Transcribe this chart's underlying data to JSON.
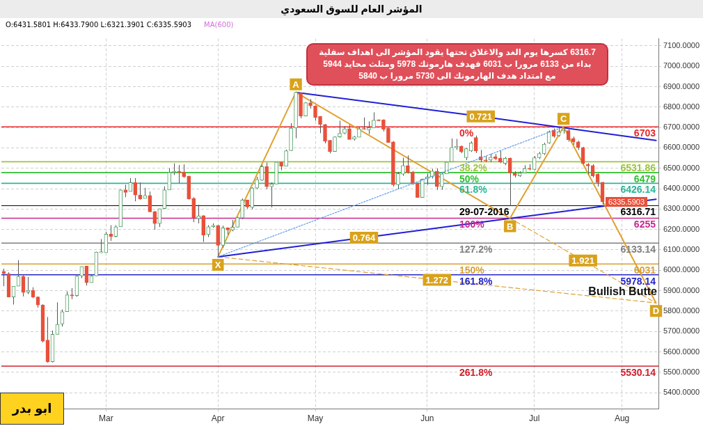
{
  "chart_data": {
    "type": "candlestick",
    "title": "المؤشر العام للسوق السعودي",
    "subtitle": "O:6431.5801 H:6433.7900 L:6321.3901 C:6335.5903",
    "categories": [
      null,
      null,
      null,
      null,
      null,
      null,
      null,
      null,
      null,
      null,
      null,
      null,
      null,
      null,
      null,
      null,
      null,
      null,
      null,
      null,
      null,
      "Mar",
      null,
      null,
      null,
      null,
      null,
      null,
      null,
      null,
      null,
      null,
      null,
      null,
      null,
      null,
      null,
      null,
      null,
      null,
      null,
      null,
      null,
      null,
      "Apr",
      null,
      null,
      null,
      null,
      null,
      null,
      null,
      null,
      null,
      null,
      null,
      null,
      null,
      null,
      null,
      null,
      null,
      null,
      null,
      "May",
      null,
      null,
      null,
      null,
      null,
      null,
      null,
      null,
      null,
      null,
      null,
      null,
      null,
      null,
      null,
      null,
      null,
      null,
      null,
      null,
      null,
      null,
      "Jun",
      null,
      null,
      null,
      null,
      null,
      null,
      null,
      null,
      null,
      null,
      null,
      null,
      null,
      null,
      null,
      null,
      null,
      null,
      null,
      null,
      null,
      "Jul",
      null,
      null,
      null,
      null,
      null,
      null,
      null,
      null,
      null,
      null,
      null,
      null,
      null,
      null,
      null,
      null,
      null,
      "Aug",
      null,
      null,
      null,
      null,
      null,
      null,
      null
    ],
    "ohlc": [
      [
        5995,
        6008,
        5922,
        5983
      ],
      [
        5983,
        5990,
        5869,
        5869
      ],
      [
        5869,
        5922,
        5832,
        5922
      ],
      [
        5922,
        6050,
        5922,
        5970
      ],
      [
        5970,
        5975,
        5872,
        5891
      ],
      [
        5893,
        5967,
        5883,
        5902
      ],
      [
        5902,
        5917,
        5863,
        5869
      ],
      [
        5869,
        5872,
        5817,
        5830
      ],
      [
        5830,
        5833,
        5647,
        5652
      ],
      [
        5658,
        5771,
        5547,
        5552
      ],
      [
        5552,
        5705,
        5548,
        5686
      ],
      [
        5686,
        5843,
        5686,
        5735
      ],
      [
        5737,
        5808,
        5724,
        5797
      ],
      [
        5797,
        5897,
        5797,
        5880
      ],
      [
        5880,
        5913,
        5858,
        5874
      ],
      [
        5876,
        5980,
        5870,
        5972
      ],
      [
        5972,
        6019,
        5961,
        6019
      ],
      [
        6020,
        6022,
        5925,
        5939
      ],
      [
        5939,
        5980,
        5939,
        5972
      ],
      [
        5972,
        6091,
        5972,
        6089
      ],
      [
        6086,
        6153,
        6085,
        6091
      ],
      [
        6086,
        6188,
        6086,
        6177
      ],
      [
        6177,
        6221,
        6144,
        6166
      ],
      [
        6166,
        6221,
        6162,
        6213
      ],
      [
        6213,
        6396,
        6213,
        6394
      ],
      [
        6394,
        6419,
        6358,
        6382
      ],
      [
        6386,
        6452,
        6386,
        6430
      ],
      [
        6430,
        6452,
        6338,
        6369
      ],
      [
        6369,
        6430,
        6346,
        6349
      ],
      [
        6352,
        6404,
        6352,
        6367
      ],
      [
        6367,
        6386,
        6286,
        6286
      ],
      [
        6288,
        6290,
        6199,
        6229
      ],
      [
        6229,
        6302,
        6212,
        6302
      ],
      [
        6302,
        6411,
        6302,
        6394
      ],
      [
        6394,
        6500,
        6394,
        6480
      ],
      [
        6480,
        6524,
        6467,
        6484
      ],
      [
        6484,
        6516,
        6427,
        6480
      ],
      [
        6482,
        6519,
        6453,
        6458
      ],
      [
        6461,
        6463,
        6347,
        6349
      ],
      [
        6352,
        6358,
        6236,
        6256
      ],
      [
        6253,
        6321,
        6230,
        6267
      ],
      [
        6268,
        6270,
        6139,
        6172
      ],
      [
        6175,
        6221,
        6163,
        6213
      ],
      [
        6213,
        6230,
        6208,
        6220
      ],
      [
        6220,
        6222,
        6066,
        6122
      ],
      [
        6122,
        6219,
        6110,
        6208
      ],
      [
        6208,
        6210,
        6175,
        6197
      ],
      [
        6197,
        6247,
        6191,
        6211
      ],
      [
        6211,
        6262,
        6211,
        6258
      ],
      [
        6256,
        6352,
        6250,
        6344
      ],
      [
        6344,
        6346,
        6302,
        6310
      ],
      [
        6308,
        6407,
        6299,
        6403
      ],
      [
        6403,
        6458,
        6398,
        6445
      ],
      [
        6441,
        6517,
        6438,
        6508
      ],
      [
        6508,
        6528,
        6397,
        6410
      ],
      [
        6410,
        6430,
        6308,
        6423
      ],
      [
        6423,
        6530,
        6423,
        6530
      ],
      [
        6530,
        6532,
        6490,
        6510
      ],
      [
        6510,
        6591,
        6510,
        6586
      ],
      [
        6586,
        6721,
        6586,
        6697
      ],
      [
        6697,
        6872,
        6647,
        6872
      ],
      [
        6869,
        6870,
        6745,
        6756
      ],
      [
        6756,
        6824,
        6756,
        6821
      ],
      [
        6821,
        6839,
        6793,
        6806
      ],
      [
        6806,
        6808,
        6733,
        6749
      ],
      [
        6754,
        6756,
        6672,
        6715
      ],
      [
        6715,
        6717,
        6622,
        6632
      ],
      [
        6637,
        6639,
        6573,
        6582
      ],
      [
        6582,
        6656,
        6582,
        6654
      ],
      [
        6654,
        6733,
        6650,
        6671
      ],
      [
        6672,
        6707,
        6667,
        6693
      ],
      [
        6694,
        6713,
        6641,
        6641
      ],
      [
        6643,
        6658,
        6636,
        6654
      ],
      [
        6652,
        6700,
        6652,
        6693
      ],
      [
        6695,
        6749,
        6689,
        6691
      ],
      [
        6689,
        6730,
        6667,
        6699
      ],
      [
        6697,
        6774,
        6697,
        6736
      ],
      [
        6737,
        6740,
        6730,
        6733
      ],
      [
        6737,
        6740,
        6680,
        6691
      ],
      [
        6697,
        6699,
        6626,
        6626
      ],
      [
        6629,
        6633,
        6410,
        6419
      ],
      [
        6419,
        6482,
        6397,
        6474
      ],
      [
        6471,
        6552,
        6463,
        6513
      ],
      [
        6513,
        6563,
        6474,
        6480
      ],
      [
        6482,
        6487,
        6419,
        6427
      ],
      [
        6427,
        6430,
        6357,
        6357
      ],
      [
        6357,
        6449,
        6357,
        6447
      ],
      [
        6447,
        6474,
        6419,
        6458
      ],
      [
        6458,
        6497,
        6450,
        6486
      ],
      [
        6486,
        6499,
        6394,
        6410
      ],
      [
        6410,
        6478,
        6394,
        6472
      ],
      [
        6472,
        6530,
        6472,
        6530
      ],
      [
        6532,
        6646,
        6532,
        6602
      ],
      [
        6602,
        6644,
        6590,
        6607
      ],
      [
        6607,
        6612,
        6574,
        6580
      ],
      [
        6552,
        6600,
        6540,
        6596
      ],
      [
        6585,
        6632,
        6580,
        6624
      ],
      [
        6651,
        6660,
        6575,
        6585
      ],
      [
        6556,
        6590,
        6530,
        6540
      ],
      [
        6541,
        6560,
        6530,
        6536
      ],
      [
        6540,
        6570,
        6530,
        6554
      ],
      [
        6557,
        6570,
        6540,
        6546
      ],
      [
        6549,
        6585,
        6525,
        6530
      ],
      [
        6524,
        6555,
        6515,
        6549
      ],
      [
        6549,
        6552,
        6314,
        6477
      ],
      [
        6477,
        6485,
        6455,
        6464
      ],
      [
        6463,
        6485,
        6458,
        6477
      ],
      [
        6477,
        6515,
        6475,
        6499
      ],
      [
        6500,
        6520,
        6490,
        6495
      ],
      [
        6494,
        6560,
        6490,
        6552
      ],
      [
        6552,
        6580,
        6545,
        6572
      ],
      [
        6571,
        6625,
        6565,
        6618
      ],
      [
        6624,
        6685,
        6620,
        6679
      ],
      [
        6687,
        6695,
        6650,
        6657
      ],
      [
        6660,
        6700,
        6655,
        6679
      ],
      [
        6685,
        6703,
        6670,
        6690
      ],
      [
        6685,
        6695,
        6630,
        6640
      ],
      [
        6646,
        6655,
        6615,
        6629
      ],
      [
        6629,
        6635,
        6590,
        6602
      ],
      [
        6602,
        6605,
        6520,
        6524
      ],
      [
        6519,
        6525,
        6470,
        6511
      ],
      [
        6513,
        6520,
        6455,
        6463
      ],
      [
        6471,
        6475,
        6410,
        6430
      ],
      [
        6431.5801,
        6433.79,
        6321.3901,
        6335.5903
      ],
      null,
      null,
      null,
      null,
      null,
      null,
      null,
      null,
      null,
      null,
      null
    ],
    "series": [
      {
        "type": "line",
        "color": "#e0a030",
        "line_style": "solid",
        "values": [
          null,
          null,
          null,
          null,
          null,
          null,
          null,
          null,
          null,
          null,
          null,
          null,
          null,
          null,
          null,
          null,
          null,
          null,
          null,
          null,
          null,
          null,
          null,
          null,
          null,
          null,
          null,
          null,
          null,
          null,
          null,
          null,
          null,
          null,
          null,
          null,
          null,
          null,
          null,
          null,
          null,
          null,
          null,
          null,
          6066,
          null,
          null,
          null,
          null,
          null,
          null,
          null,
          null,
          null,
          null,
          null,
          null,
          null,
          null,
          null,
          6872,
          null,
          null,
          null,
          null,
          null,
          null,
          null,
          null,
          null,
          null,
          null,
          null,
          null,
          null,
          null,
          null,
          null,
          null,
          null,
          null,
          null,
          null,
          null,
          null,
          null,
          null,
          null,
          null,
          null,
          null,
          null,
          null,
          null,
          null,
          null,
          null,
          null,
          null,
          null,
          null,
          null,
          null,
          null,
          6255,
          null,
          null,
          null,
          null,
          null,
          null,
          null,
          null,
          null,
          null,
          6703,
          null,
          null,
          null,
          null,
          null,
          null,
          null,
          null,
          null,
          null,
          null,
          null,
          null,
          null,
          null,
          null,
          null,
          null,
          5840
        ],
        "value_labels": [
          null,
          null,
          null,
          null,
          null,
          null,
          null,
          null,
          null,
          null,
          null,
          null,
          null,
          null,
          null,
          null,
          null,
          null,
          null,
          null,
          null,
          null,
          null,
          null,
          null,
          null,
          null,
          null,
          null,
          null,
          null,
          null,
          null,
          null,
          null,
          null,
          null,
          null,
          null,
          null,
          null,
          null,
          null,
          null,
          "X",
          null,
          null,
          null,
          null,
          null,
          null,
          null,
          null,
          null,
          null,
          null,
          null,
          null,
          null,
          null,
          "A",
          null,
          null,
          null,
          null,
          null,
          null,
          null,
          null,
          null,
          null,
          null,
          null,
          null,
          null,
          null,
          null,
          null,
          null,
          null,
          null,
          null,
          null,
          null,
          null,
          null,
          null,
          null,
          null,
          null,
          null,
          null,
          null,
          null,
          null,
          null,
          null,
          null,
          null,
          null,
          null,
          null,
          null,
          null,
          "B",
          null,
          null,
          null,
          null,
          null,
          null,
          null,
          null,
          null,
          null,
          "C",
          null,
          null,
          null,
          null,
          null,
          null,
          null,
          null,
          null,
          null,
          null,
          null,
          null,
          null,
          null,
          null,
          null,
          null,
          "D"
        ]
      },
      {
        "type": "line",
        "color": "#1f1fd6",
        "line_style": "solid",
        "values": [
          null,
          null,
          null,
          null,
          null,
          null,
          null,
          null,
          null,
          null,
          null,
          null,
          null,
          null,
          null,
          null,
          null,
          null,
          null,
          null,
          null,
          null,
          null,
          null,
          null,
          null,
          null,
          null,
          null,
          null,
          null,
          null,
          null,
          null,
          null,
          null,
          null,
          null,
          null,
          null,
          null,
          null,
          null,
          null,
          null,
          null,
          null,
          null,
          null,
          null,
          null,
          null,
          null,
          null,
          null,
          null,
          null,
          null,
          null,
          null,
          6872,
          null,
          null,
          null,
          null,
          null,
          null,
          null,
          null,
          null,
          null,
          null,
          null,
          null,
          null,
          null,
          null,
          null,
          null,
          null,
          null,
          null,
          null,
          null,
          null,
          null,
          null,
          null,
          null,
          null,
          null,
          null,
          null,
          null,
          null,
          null,
          null,
          null,
          6754,
          null,
          null,
          null,
          null,
          null,
          null,
          null,
          null,
          null,
          null,
          null,
          null,
          null,
          null,
          null,
          null,
          null,
          null,
          null,
          null,
          null,
          null,
          null,
          null,
          null,
          null,
          null,
          null,
          null,
          null,
          null,
          null,
          null,
          null,
          null,
          6636
        ]
      },
      {
        "type": "line",
        "color": "#1f1fd6",
        "line_style": "solid",
        "values": [
          null,
          null,
          null,
          null,
          null,
          null,
          null,
          null,
          null,
          null,
          null,
          null,
          null,
          null,
          null,
          null,
          null,
          null,
          null,
          null,
          null,
          null,
          null,
          null,
          null,
          null,
          null,
          null,
          null,
          null,
          null,
          null,
          null,
          null,
          null,
          null,
          null,
          null,
          null,
          null,
          null,
          null,
          null,
          null,
          6066,
          null,
          null,
          null,
          null,
          null,
          null,
          null,
          null,
          null,
          null,
          null,
          null,
          null,
          null,
          null,
          null,
          null,
          null,
          null,
          null,
          null,
          null,
          null,
          null,
          null,
          null,
          null,
          null,
          null,
          6160,
          null,
          null,
          null,
          null,
          null,
          null,
          null,
          null,
          null,
          null,
          null,
          null,
          null,
          null,
          null,
          null,
          null,
          null,
          null,
          null,
          null,
          null,
          null,
          null,
          null,
          null,
          null,
          null,
          null,
          6254,
          null,
          null,
          null,
          null,
          null,
          null,
          null,
          null,
          null,
          null,
          null,
          null,
          null,
          null,
          null,
          null,
          null,
          null,
          null,
          null,
          null,
          null,
          null,
          null,
          null,
          null,
          null,
          null,
          null,
          6348
        ]
      },
      {
        "type": "line",
        "color": "#e0a030",
        "line_style": "dashed",
        "values": [
          null,
          null,
          null,
          null,
          null,
          null,
          null,
          null,
          null,
          null,
          null,
          null,
          null,
          null,
          null,
          null,
          null,
          null,
          null,
          null,
          null,
          null,
          null,
          null,
          null,
          null,
          null,
          null,
          null,
          null,
          null,
          null,
          null,
          null,
          null,
          null,
          null,
          null,
          null,
          null,
          null,
          null,
          null,
          null,
          null,
          null,
          null,
          null,
          null,
          null,
          null,
          null,
          null,
          null,
          null,
          null,
          null,
          null,
          null,
          null,
          null,
          null,
          null,
          null,
          null,
          null,
          null,
          null,
          null,
          null,
          null,
          null,
          null,
          null,
          null,
          null,
          null,
          null,
          null,
          null,
          null,
          null,
          null,
          null,
          null,
          null,
          null,
          null,
          null,
          null,
          null,
          null,
          null,
          null,
          null,
          null,
          null,
          null,
          null,
          null,
          null,
          null,
          null,
          null,
          6255,
          null,
          null,
          null,
          null,
          null,
          null,
          null,
          null,
          null,
          null,
          null,
          null,
          null,
          null,
          6048,
          null,
          null,
          null,
          null,
          null,
          null,
          null,
          null,
          null,
          null,
          null,
          null,
          null,
          null,
          5840
        ]
      },
      {
        "type": "line",
        "color": "#e0a030",
        "line_style": "dashed",
        "values": [
          null,
          null,
          null,
          null,
          null,
          null,
          null,
          null,
          null,
          null,
          null,
          null,
          null,
          null,
          null,
          null,
          null,
          null,
          null,
          null,
          null,
          null,
          null,
          null,
          null,
          null,
          null,
          null,
          null,
          null,
          null,
          null,
          null,
          null,
          null,
          null,
          null,
          null,
          null,
          null,
          null,
          null,
          null,
          null,
          6066,
          null,
          null,
          null,
          null,
          null,
          null,
          null,
          null,
          null,
          null,
          null,
          null,
          null,
          null,
          null,
          null,
          null,
          null,
          null,
          null,
          null,
          null,
          null,
          null,
          null,
          null,
          null,
          null,
          null,
          null,
          null,
          null,
          null,
          null,
          null,
          null,
          null,
          null,
          null,
          null,
          null,
          null,
          null,
          null,
          5953,
          null,
          null,
          null,
          null,
          null,
          null,
          null,
          null,
          null,
          null,
          null,
          null,
          null,
          null,
          null,
          null,
          null,
          null,
          null,
          null,
          null,
          null,
          null,
          null,
          null,
          null,
          null,
          null,
          null,
          null,
          null,
          null,
          null,
          null,
          null,
          null,
          null,
          null,
          null,
          null,
          null,
          null,
          null,
          null,
          5840
        ]
      },
      {
        "type": "line",
        "color": "#5b9bef",
        "line_style": "dotted",
        "values": [
          null,
          null,
          null,
          null,
          null,
          null,
          null,
          null,
          null,
          null,
          null,
          null,
          null,
          null,
          null,
          null,
          null,
          null,
          null,
          null,
          null,
          null,
          null,
          null,
          null,
          null,
          null,
          null,
          null,
          null,
          null,
          null,
          null,
          null,
          null,
          null,
          null,
          null,
          null,
          null,
          null,
          null,
          null,
          null,
          6066,
          null,
          null,
          null,
          null,
          null,
          null,
          null,
          null,
          null,
          null,
          null,
          null,
          null,
          null,
          null,
          null,
          null,
          null,
          null,
          null,
          null,
          null,
          null,
          null,
          null,
          null,
          null,
          null,
          null,
          null,
          null,
          null,
          null,
          null,
          null,
          null,
          null,
          null,
          null,
          null,
          null,
          null,
          null,
          null,
          null,
          null,
          null,
          null,
          null,
          null,
          null,
          null,
          null,
          null,
          null,
          null,
          null,
          null,
          null,
          null,
          null,
          null,
          null,
          null,
          null,
          null,
          null,
          null,
          null,
          null,
          6703,
          null,
          null,
          null,
          null,
          null,
          null,
          null,
          null,
          null,
          null,
          null,
          null,
          null,
          null,
          null,
          null,
          null,
          null,
          null
        ]
      }
    ],
    "ylim": [
      5320,
      7135
    ],
    "yticks": [
      {
        "value": 5400,
        "label": "5400.0000"
      },
      {
        "value": 5500,
        "label": "5500.0000"
      },
      {
        "value": 5600,
        "label": "5600.0000"
      },
      {
        "value": 5700,
        "label": "5700.0000"
      },
      {
        "value": 5800,
        "label": "5800.0000"
      },
      {
        "value": 5900,
        "label": "5900.0000"
      },
      {
        "value": 6000,
        "label": "6000.0000"
      },
      {
        "value": 6100,
        "label": "6100.0000"
      },
      {
        "value": 6200,
        "label": "6200.0000"
      },
      {
        "value": 6300,
        "label": "6300.0000"
      },
      {
        "value": 6400,
        "label": "6400.0000"
      },
      {
        "value": 6500,
        "label": "6500.0000"
      },
      {
        "value": 6600,
        "label": "6600.0000"
      },
      {
        "value": 6700,
        "label": "6700.0000"
      },
      {
        "value": 6800,
        "label": "6800.0000"
      },
      {
        "value": 6900,
        "label": "6900.0000"
      },
      {
        "value": 7000,
        "label": "7000.0000"
      },
      {
        "value": 7100,
        "label": "7100.0000"
      }
    ],
    "ref_lines": [
      {
        "axis": "y",
        "value": 6703,
        "label": "6703",
        "color": "#e8262b"
      },
      {
        "axis": "y",
        "value": 6531.86,
        "label": "6531.86",
        "color": "#9cc43c"
      },
      {
        "axis": "y",
        "value": 6479,
        "label": "6479",
        "color": "#2fbf2f"
      },
      {
        "axis": "y",
        "value": 6426.14,
        "label": "6426.14",
        "color": "#2bb598"
      },
      {
        "axis": "y",
        "value": 6316.71,
        "label": "6316.71",
        "color": "#000000"
      },
      {
        "axis": "y",
        "value": 6255,
        "label": "6255",
        "color": "#c8288f"
      },
      {
        "axis": "y",
        "value": 6133.14,
        "label": "6133.14",
        "color": "#808080"
      },
      {
        "axis": "y",
        "value": 6031,
        "label": "6031",
        "color": "#d9a030"
      },
      {
        "axis": "y",
        "value": 5978.14,
        "label": "5978.14",
        "color": "#2424c8"
      },
      {
        "axis": "y",
        "value": 5530.14,
        "label": "5530.14",
        "color": "#d0202c"
      }
    ],
    "annotations": [
      "MA(600)",
      "6316.7 كسرها يوم الغد والاغلاق تحتها يقود المؤشر الى اهداف سفلية\nبداء من 6133 مرورا ب 6031 فهدف هارمونك 5978 ومثلث محايد 5944\nمع امتداد هدف الهارمونك الى 5730 مرورا ب 5840",
      "ابو بدر",
      {
        "text": "Bullish Butte",
        "y": 5840
      },
      {
        "text": "0%",
        "y": 6703
      },
      {
        "text": "38.2%",
        "y": 6531.86
      },
      {
        "text": "50%",
        "y": 6479
      },
      {
        "text": "61.8%",
        "y": 6426.14
      },
      {
        "text": "29-07-2016",
        "y": 6316.71
      },
      {
        "text": "100%",
        "y": 6255
      },
      {
        "text": "127.2%",
        "y": 6133.14
      },
      {
        "text": "150%",
        "y": 6031
      },
      {
        "text": "161.8%",
        "y": 5978.14
      },
      {
        "text": "261.8%",
        "y": 5530.14
      },
      {
        "text": "0.721",
        "y": 6754
      },
      {
        "text": "0.764",
        "y": 6160
      },
      {
        "text": "1.921",
        "y": 6048
      },
      {
        "text": "1.272",
        "y": 5953
      },
      {
        "text": "6335.5903",
        "y": 6335.5903
      }
    ],
    "grid": true
  }
}
